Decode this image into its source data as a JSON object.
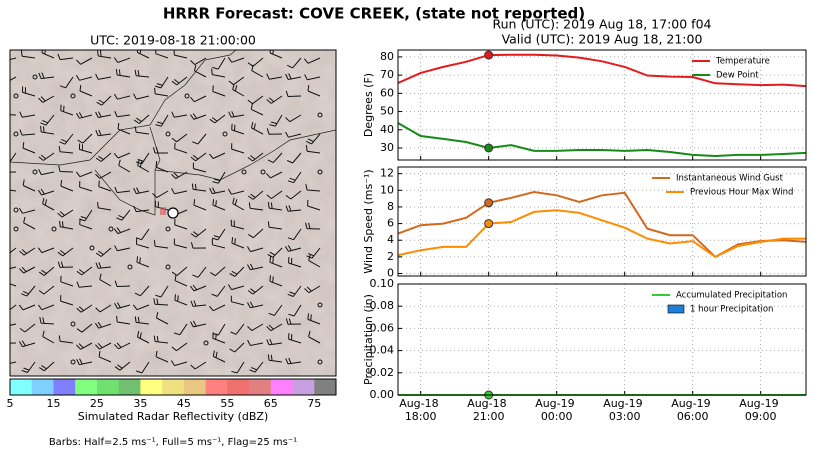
{
  "title": "HRRR Forecast: COVE CREEK, (state not reported)",
  "run": "Run (UTC): 2019 Aug 18, 17:00 f04",
  "valid": "Valid (UTC): 2019 Aug 18, 21:00",
  "chart_data": [
    {
      "type": "map",
      "title": "UTC: 2019-08-18 21:00:00",
      "colorbar": {
        "label": "Simulated Radar Reflectivity (dBZ)",
        "bounds": [
          5,
          80
        ],
        "colors": [
          "#80ffff",
          "#80d0ff",
          "#8080ff",
          "#80ff80",
          "#70e070",
          "#70c070",
          "#ffff80",
          "#f0e080",
          "#e8c880",
          "#ff8080",
          "#f07070",
          "#e08080",
          "#ff80ff",
          "#c8a0e0",
          "#808080"
        ],
        "ticks": [
          5,
          15,
          25,
          35,
          45,
          55,
          65,
          75
        ]
      },
      "note": "Barbs: Half=2.5 ms⁻¹, Full=5 ms⁻¹, Flag=25 ms⁻¹"
    },
    {
      "type": "line",
      "ylabel": "Degrees (F)",
      "x": [
        "Aug-18 17:00",
        "Aug-18 18:00",
        "Aug-18 19:00",
        "Aug-18 20:00",
        "Aug-18 21:00",
        "Aug-18 22:00",
        "Aug-18 23:00",
        "Aug-19 00:00",
        "Aug-19 01:00",
        "Aug-19 02:00",
        "Aug-19 03:00",
        "Aug-19 04:00",
        "Aug-19 05:00",
        "Aug-19 06:00",
        "Aug-19 07:00",
        "Aug-19 08:00",
        "Aug-19 09:00",
        "Aug-19 10:00",
        "Aug-19 11:00"
      ],
      "xlim": [
        "Aug-18 17:00",
        "Aug-19 11:00"
      ],
      "xticks": [
        "Aug-18 18:00",
        "Aug-18 21:00",
        "Aug-19 00:00",
        "Aug-19 03:00",
        "Aug-19 06:00",
        "Aug-19 09:00"
      ],
      "highlight": "Aug-18 21:00",
      "ylim": [
        23.4,
        83.8
      ],
      "yticks": [
        30,
        40,
        50,
        60,
        70,
        80
      ],
      "grid": true,
      "legend": "upper right",
      "series": [
        {
          "name": "Temperature",
          "color": "#e41a1c",
          "values": [
            65.7,
            71.2,
            74.5,
            77.3,
            81,
            81.2,
            81.2,
            80.8,
            79.6,
            77.6,
            74.5,
            69.8,
            69.2,
            69,
            65.5,
            65,
            64.5,
            64.8,
            64
          ]
        },
        {
          "name": "Dew Point",
          "color": "#158a15",
          "values": [
            43.7,
            36.6,
            35,
            33.3,
            30,
            31.6,
            28.4,
            28.4,
            28.9,
            28.9,
            28.4,
            28.9,
            27.8,
            26.2,
            25.6,
            26.2,
            26.2,
            26.7,
            27.3
          ]
        }
      ]
    },
    {
      "type": "line",
      "ylabel": "Wind Speed (ms⁻¹)",
      "x": [
        "Aug-18 17:00",
        "Aug-18 18:00",
        "Aug-18 19:00",
        "Aug-18 20:00",
        "Aug-18 21:00",
        "Aug-18 22:00",
        "Aug-18 23:00",
        "Aug-19 00:00",
        "Aug-19 01:00",
        "Aug-19 02:00",
        "Aug-19 03:00",
        "Aug-19 04:00",
        "Aug-19 05:00",
        "Aug-19 06:00",
        "Aug-19 07:00",
        "Aug-19 08:00",
        "Aug-19 09:00",
        "Aug-19 10:00",
        "Aug-19 11:00"
      ],
      "xlim": [
        "Aug-18 17:00",
        "Aug-19 11:00"
      ],
      "xticks": [
        "Aug-18 18:00",
        "Aug-18 21:00",
        "Aug-19 00:00",
        "Aug-19 03:00",
        "Aug-19 06:00",
        "Aug-19 09:00"
      ],
      "highlight": "Aug-18 21:00",
      "ylim": [
        -0.3,
        12.8
      ],
      "yticks": [
        0,
        2,
        4,
        6,
        8,
        10,
        12
      ],
      "grid": true,
      "legend": "upper right",
      "series": [
        {
          "name": "Instantaneous Wind Gust",
          "color": "#d2691e",
          "values": [
            4.8,
            5.8,
            6.0,
            6.7,
            8.5,
            9.1,
            9.8,
            9.4,
            8.6,
            9.4,
            9.7,
            5.4,
            4.6,
            4.6,
            2.0,
            3.5,
            3.9,
            4.0,
            3.8
          ]
        },
        {
          "name": "Previous Hour Max Wind",
          "color": "#ff8c00",
          "values": [
            2.2,
            2.8,
            3.2,
            3.2,
            6.0,
            6.2,
            7.4,
            7.6,
            7.3,
            6.4,
            5.5,
            4.2,
            3.6,
            3.9,
            2.0,
            3.3,
            3.8,
            4.2,
            4.2
          ]
        }
      ]
    },
    {
      "type": "combo",
      "ylabel": "Precipitation (in)",
      "x": [
        "Aug-18 17:00",
        "Aug-18 18:00",
        "Aug-18 19:00",
        "Aug-18 20:00",
        "Aug-18 21:00",
        "Aug-18 22:00",
        "Aug-18 23:00",
        "Aug-19 00:00",
        "Aug-19 01:00",
        "Aug-19 02:00",
        "Aug-19 03:00",
        "Aug-19 04:00",
        "Aug-19 05:00",
        "Aug-19 06:00",
        "Aug-19 07:00",
        "Aug-19 08:00",
        "Aug-19 09:00",
        "Aug-19 10:00",
        "Aug-19 11:00"
      ],
      "xlim": [
        "Aug-18 17:00",
        "Aug-19 11:00"
      ],
      "xticks": [
        "Aug-18 18:00",
        "Aug-18 21:00",
        "Aug-19 00:00",
        "Aug-19 03:00",
        "Aug-19 06:00",
        "Aug-19 09:00"
      ],
      "show_xtick_labels": true,
      "highlight": "Aug-18 21:00",
      "ylim": [
        0,
        0.1
      ],
      "yticks": [
        {
          "value": 0,
          "label": "0.00"
        },
        {
          "value": 0.02,
          "label": "0.02"
        },
        {
          "value": 0.04,
          "label": "0.04"
        },
        {
          "value": 0.06,
          "label": "0.06"
        },
        {
          "value": 0.08,
          "label": "0.08"
        },
        {
          "value": 0.1,
          "label": "0.10"
        }
      ],
      "grid": true,
      "legend": "upper right",
      "series": [
        {
          "name": "Accumulated Precipitation",
          "kind": "line",
          "color": "#32cd32",
          "values": [
            0,
            0,
            0,
            0,
            0,
            0,
            0,
            0,
            0,
            0,
            0,
            0,
            0,
            0,
            0,
            0,
            0,
            0,
            0
          ]
        },
        {
          "name": "1 hour Precipitation",
          "kind": "bar",
          "color": "#1e7fd8",
          "values": [
            0,
            0,
            0,
            0,
            0,
            0,
            0,
            0,
            0,
            0,
            0,
            0,
            0,
            0,
            0,
            0,
            0,
            0,
            0
          ]
        }
      ]
    }
  ]
}
